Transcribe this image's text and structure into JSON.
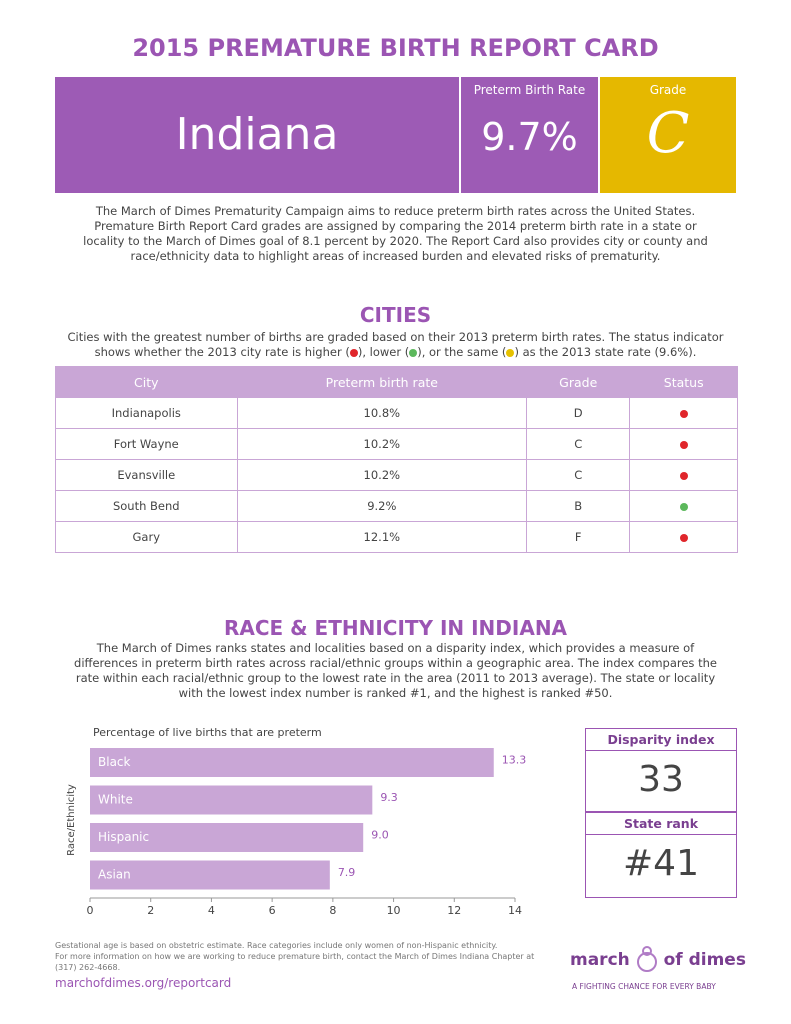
{
  "header": {
    "title": "2015 PREMATURE BIRTH REPORT CARD",
    "state": "Indiana",
    "rate_label": "Preterm Birth Rate",
    "rate": "9.7%",
    "grade_label": "Grade",
    "grade": "C"
  },
  "intro": "The March of Dimes Prematurity Campaign aims to reduce preterm birth rates across the United States. Premature Birth Report Card grades are assigned by comparing the 2014 preterm birth rate in a state or locality to the March of Dimes goal of 8.1 percent by 2020. The Report Card also provides city or county and race/ethnicity data to highlight areas of increased burden and elevated risks of prematurity.",
  "cities": {
    "title": "CITIES",
    "description_parts": [
      "Cities with the greatest number of births are graded based on their 2013 preterm birth rates. The status indicator shows whether the 2013 city rate is higher (",
      "), lower (",
      "), or the same (",
      ") as the 2013 state rate (9.6%)."
    ],
    "legend_colors": [
      "#e0262b",
      "#5cb85c",
      "#e6c100"
    ],
    "headers": [
      "City",
      "Preterm birth rate",
      "Grade",
      "Status"
    ],
    "rows": [
      [
        "Indianapolis",
        "10.8%",
        "D"
      ],
      [
        "Fort Wayne",
        "10.2%",
        "C"
      ],
      [
        "Evansville",
        "10.2%",
        "C"
      ],
      [
        "South Bend",
        "9.2%",
        "B"
      ],
      [
        "Gary",
        "12.1%",
        "F"
      ]
    ],
    "status_colors": [
      "#e0262b",
      "#e0262b",
      "#e0262b",
      "#5cb85c",
      "#e0262b"
    ]
  },
  "race": {
    "title": "RACE & ETHNICITY IN INDIANA",
    "description": "The March of Dimes ranks states and localities based on a disparity index, which provides a measure of differences in preterm birth rates across racial/ethnic groups within a geographic area. The index compares the rate within each racial/ethnic group to the lowest rate in the area (2011 to 2013 average). The state or locality with the lowest index number is ranked #1, and the highest is ranked #50."
  },
  "chart_data": {
    "type": "hbar",
    "title": "Percentage of live births that are preterm",
    "y_label": "Race/Ethnicity",
    "categories": [
      "Black",
      "White",
      "Hispanic",
      "Asian"
    ],
    "values": [
      13.3,
      9.3,
      9.0,
      7.9
    ],
    "value_labels": [
      "13.3",
      "9.3",
      "9.0",
      "7.9"
    ],
    "color": "#c9a6d6",
    "xlim": [
      0,
      14
    ],
    "xticks": [
      0,
      2,
      4,
      6,
      8,
      10,
      12,
      14
    ],
    "grid": false
  },
  "disparity": {
    "label": "Disparity index",
    "value": "33"
  },
  "rank": {
    "label": "State rank",
    "value": "#41"
  },
  "footer": {
    "note": "Gestational age is based on obstetric estimate. Race categories include only women of non-Hispanic ethnicity.",
    "contact": "For more information on how we are working to reduce premature birth, contact the March of Dimes Indiana Chapter at (317) 262-4668.",
    "link": "marchofdimes.org/reportcard"
  },
  "logo": {
    "word1": "march",
    "word2": "of dimes",
    "tagline": "A FIGHTING CHANCE FOR EVERY BABY"
  }
}
